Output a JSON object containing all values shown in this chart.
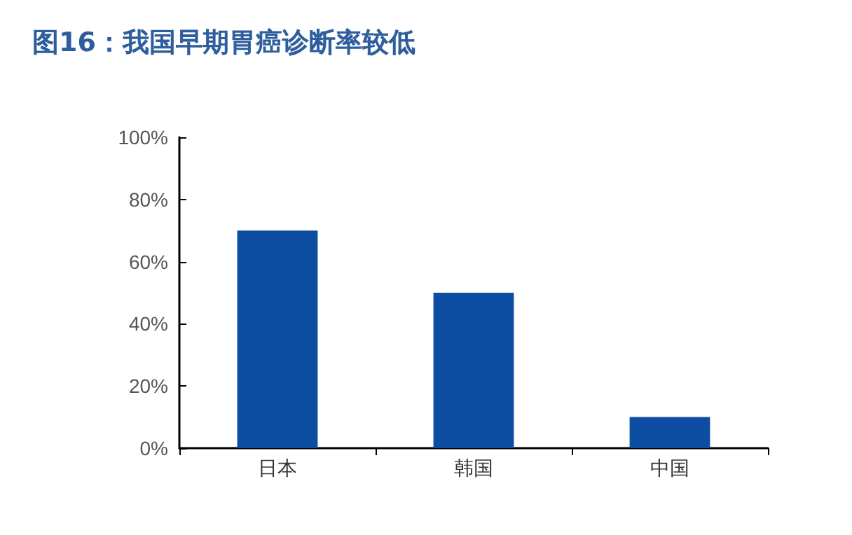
{
  "chart_data": {
    "type": "bar",
    "title": "图16：我国早期胃癌诊断率较低",
    "categories": [
      "日本",
      "韩国",
      "中国"
    ],
    "values": [
      70,
      50,
      10
    ],
    "color": "#0c4da2",
    "ylim": [
      0,
      100
    ],
    "yticks": [
      {
        "value": 0,
        "label": "0%"
      },
      {
        "value": 20,
        "label": "20%"
      },
      {
        "value": 40,
        "label": "40%"
      },
      {
        "value": 60,
        "label": "60%"
      },
      {
        "value": 80,
        "label": "80%"
      },
      {
        "value": 100,
        "label": "100%"
      }
    ],
    "grid": false
  }
}
